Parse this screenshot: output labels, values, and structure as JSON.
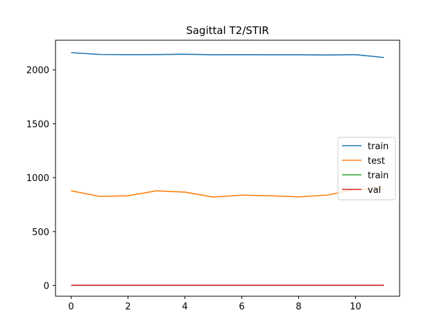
{
  "chart_data": {
    "type": "line",
    "title": "Sagittal T2/STIR",
    "xlabel": "",
    "ylabel": "",
    "xlim": [
      -0.55,
      11.55
    ],
    "ylim": [
      -100,
      2275
    ],
    "xticks": [
      0,
      2,
      4,
      6,
      8,
      10
    ],
    "yticks": [
      0,
      500,
      1000,
      1500,
      2000
    ],
    "grid": false,
    "legend_position": "center-right",
    "x": [
      0,
      1,
      2,
      3,
      4,
      5,
      6,
      7,
      8,
      9,
      10,
      11
    ],
    "series": [
      {
        "name": "train",
        "color": "#1f77b4",
        "values": [
          2160,
          2143,
          2141,
          2142,
          2145,
          2140,
          2141,
          2140,
          2140,
          2138,
          2141,
          2115
        ]
      },
      {
        "name": "test",
        "color": "#ff7f0e",
        "values": [
          878,
          826,
          832,
          878,
          866,
          820,
          838,
          832,
          822,
          838,
          890,
          895
        ]
      },
      {
        "name": "train",
        "color": "#2ca02c",
        "values": [
          1,
          1,
          1,
          1,
          1,
          1,
          1,
          1,
          1,
          1,
          1,
          1
        ]
      },
      {
        "name": "val",
        "color": "#d62728",
        "values": [
          2,
          2,
          2,
          2,
          2,
          2,
          2,
          2,
          2,
          2,
          2,
          2
        ]
      }
    ]
  }
}
